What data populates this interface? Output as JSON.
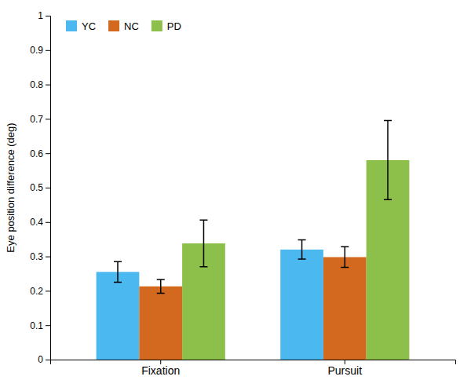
{
  "chart_data": {
    "type": "bar",
    "categories": [
      "Fixation",
      "Pursuit"
    ],
    "series": [
      {
        "name": "YC",
        "color": "#4BB8F0",
        "values": [
          0.255,
          0.32
        ],
        "errors": [
          0.03,
          0.028
        ]
      },
      {
        "name": "NC",
        "color": "#D2691E",
        "values": [
          0.213,
          0.298
        ],
        "errors": [
          0.02,
          0.03
        ]
      },
      {
        "name": "PD",
        "color": "#8DC04B",
        "values": [
          0.338,
          0.58
        ],
        "errors": [
          0.068,
          0.115
        ]
      }
    ],
    "y_label": "Eye position difference (deg)",
    "ylim": [
      0,
      1.0
    ],
    "yticks": [
      0,
      0.1,
      0.2,
      0.3,
      0.4,
      0.5,
      0.6,
      0.7,
      0.8,
      0.9,
      1
    ],
    "legend": "upper left",
    "grid": false
  }
}
